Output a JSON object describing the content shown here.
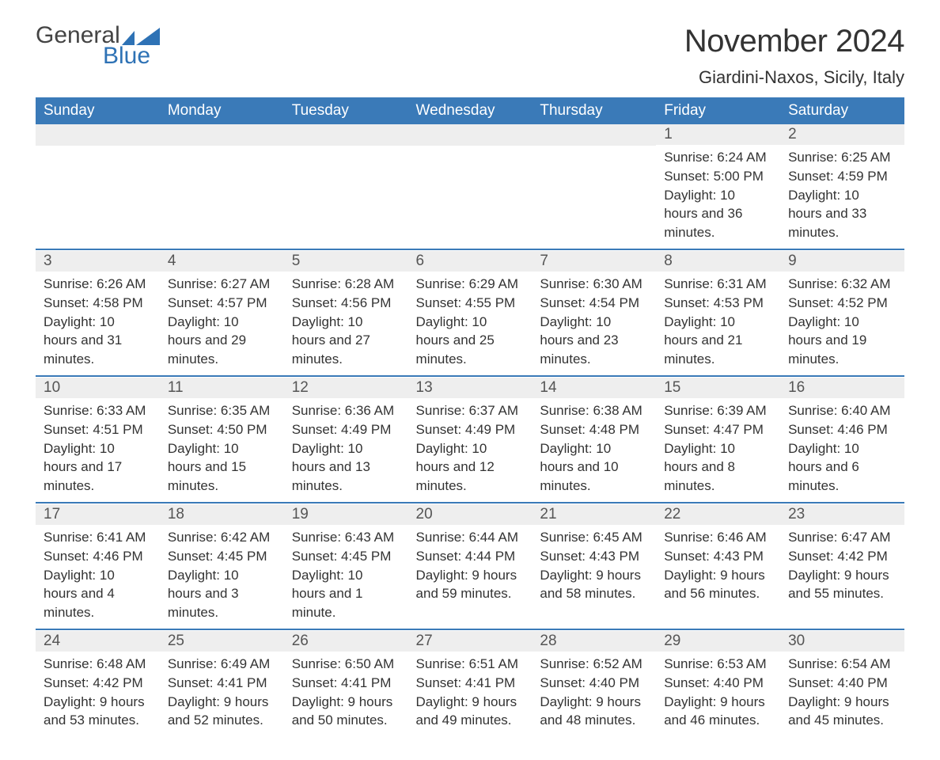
{
  "logo": {
    "word1": "General",
    "word2": "Blue",
    "text_color": "#444444",
    "accent_color": "#2e72b5"
  },
  "title": "November 2024",
  "location": "Giardini-Naxos, Sicily, Italy",
  "colors": {
    "header_bg": "#3a7ab8",
    "header_text": "#ffffff",
    "daynum_bg": "#eeeeee",
    "daynum_text": "#555555",
    "body_text": "#333333",
    "rule": "#3a7ab8",
    "page_bg": "#ffffff"
  },
  "typography": {
    "title_fontsize": 40,
    "location_fontsize": 22,
    "header_fontsize": 19,
    "daynum_fontsize": 19,
    "body_fontsize": 17,
    "logo_fontsize": 30
  },
  "weekdays": [
    "Sunday",
    "Monday",
    "Tuesday",
    "Wednesday",
    "Thursday",
    "Friday",
    "Saturday"
  ],
  "weeks": [
    [
      null,
      null,
      null,
      null,
      null,
      {
        "n": "1",
        "sunrise": "6:24 AM",
        "sunset": "5:00 PM",
        "daylight": "10 hours and 36 minutes."
      },
      {
        "n": "2",
        "sunrise": "6:25 AM",
        "sunset": "4:59 PM",
        "daylight": "10 hours and 33 minutes."
      }
    ],
    [
      {
        "n": "3",
        "sunrise": "6:26 AM",
        "sunset": "4:58 PM",
        "daylight": "10 hours and 31 minutes."
      },
      {
        "n": "4",
        "sunrise": "6:27 AM",
        "sunset": "4:57 PM",
        "daylight": "10 hours and 29 minutes."
      },
      {
        "n": "5",
        "sunrise": "6:28 AM",
        "sunset": "4:56 PM",
        "daylight": "10 hours and 27 minutes."
      },
      {
        "n": "6",
        "sunrise": "6:29 AM",
        "sunset": "4:55 PM",
        "daylight": "10 hours and 25 minutes."
      },
      {
        "n": "7",
        "sunrise": "6:30 AM",
        "sunset": "4:54 PM",
        "daylight": "10 hours and 23 minutes."
      },
      {
        "n": "8",
        "sunrise": "6:31 AM",
        "sunset": "4:53 PM",
        "daylight": "10 hours and 21 minutes."
      },
      {
        "n": "9",
        "sunrise": "6:32 AM",
        "sunset": "4:52 PM",
        "daylight": "10 hours and 19 minutes."
      }
    ],
    [
      {
        "n": "10",
        "sunrise": "6:33 AM",
        "sunset": "4:51 PM",
        "daylight": "10 hours and 17 minutes."
      },
      {
        "n": "11",
        "sunrise": "6:35 AM",
        "sunset": "4:50 PM",
        "daylight": "10 hours and 15 minutes."
      },
      {
        "n": "12",
        "sunrise": "6:36 AM",
        "sunset": "4:49 PM",
        "daylight": "10 hours and 13 minutes."
      },
      {
        "n": "13",
        "sunrise": "6:37 AM",
        "sunset": "4:49 PM",
        "daylight": "10 hours and 12 minutes."
      },
      {
        "n": "14",
        "sunrise": "6:38 AM",
        "sunset": "4:48 PM",
        "daylight": "10 hours and 10 minutes."
      },
      {
        "n": "15",
        "sunrise": "6:39 AM",
        "sunset": "4:47 PM",
        "daylight": "10 hours and 8 minutes."
      },
      {
        "n": "16",
        "sunrise": "6:40 AM",
        "sunset": "4:46 PM",
        "daylight": "10 hours and 6 minutes."
      }
    ],
    [
      {
        "n": "17",
        "sunrise": "6:41 AM",
        "sunset": "4:46 PM",
        "daylight": "10 hours and 4 minutes."
      },
      {
        "n": "18",
        "sunrise": "6:42 AM",
        "sunset": "4:45 PM",
        "daylight": "10 hours and 3 minutes."
      },
      {
        "n": "19",
        "sunrise": "6:43 AM",
        "sunset": "4:45 PM",
        "daylight": "10 hours and 1 minute."
      },
      {
        "n": "20",
        "sunrise": "6:44 AM",
        "sunset": "4:44 PM",
        "daylight": "9 hours and 59 minutes."
      },
      {
        "n": "21",
        "sunrise": "6:45 AM",
        "sunset": "4:43 PM",
        "daylight": "9 hours and 58 minutes."
      },
      {
        "n": "22",
        "sunrise": "6:46 AM",
        "sunset": "4:43 PM",
        "daylight": "9 hours and 56 minutes."
      },
      {
        "n": "23",
        "sunrise": "6:47 AM",
        "sunset": "4:42 PM",
        "daylight": "9 hours and 55 minutes."
      }
    ],
    [
      {
        "n": "24",
        "sunrise": "6:48 AM",
        "sunset": "4:42 PM",
        "daylight": "9 hours and 53 minutes."
      },
      {
        "n": "25",
        "sunrise": "6:49 AM",
        "sunset": "4:41 PM",
        "daylight": "9 hours and 52 minutes."
      },
      {
        "n": "26",
        "sunrise": "6:50 AM",
        "sunset": "4:41 PM",
        "daylight": "9 hours and 50 minutes."
      },
      {
        "n": "27",
        "sunrise": "6:51 AM",
        "sunset": "4:41 PM",
        "daylight": "9 hours and 49 minutes."
      },
      {
        "n": "28",
        "sunrise": "6:52 AM",
        "sunset": "4:40 PM",
        "daylight": "9 hours and 48 minutes."
      },
      {
        "n": "29",
        "sunrise": "6:53 AM",
        "sunset": "4:40 PM",
        "daylight": "9 hours and 46 minutes."
      },
      {
        "n": "30",
        "sunrise": "6:54 AM",
        "sunset": "4:40 PM",
        "daylight": "9 hours and 45 minutes."
      }
    ]
  ],
  "labels": {
    "sunrise": "Sunrise: ",
    "sunset": "Sunset: ",
    "daylight": "Daylight: "
  }
}
